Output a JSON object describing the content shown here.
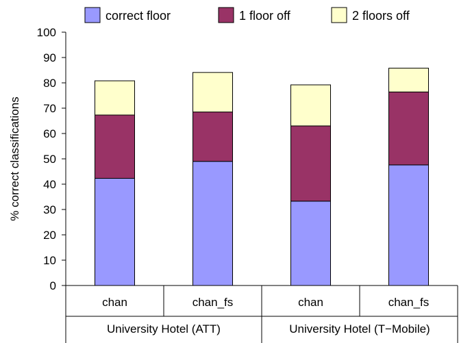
{
  "chart_data": {
    "type": "bar",
    "stacked": true,
    "ylabel": "% correct classifications",
    "ylim": [
      0,
      100
    ],
    "yticks": [
      0,
      10,
      20,
      30,
      40,
      50,
      60,
      70,
      80,
      90,
      100
    ],
    "groups": [
      {
        "label": "University Hotel (ATT)",
        "categories": [
          "chan",
          "chan_fs"
        ]
      },
      {
        "label": "University Hotel (T−Mobile)",
        "categories": [
          "chan",
          "chan_fs"
        ]
      }
    ],
    "categories": [
      "chan",
      "chan_fs",
      "chan",
      "chan_fs"
    ],
    "series": [
      {
        "name": "correct floor",
        "color": "#9999ff",
        "values": [
          42.3,
          49.0,
          33.3,
          47.6
        ]
      },
      {
        "name": "1 floor off",
        "color": "#993366",
        "values": [
          25.0,
          19.5,
          29.7,
          28.8
        ]
      },
      {
        "name": "2 floors off",
        "color": "#ffffcc",
        "values": [
          13.5,
          15.6,
          16.2,
          9.4
        ]
      }
    ],
    "legend_position": "top",
    "grid": false
  }
}
